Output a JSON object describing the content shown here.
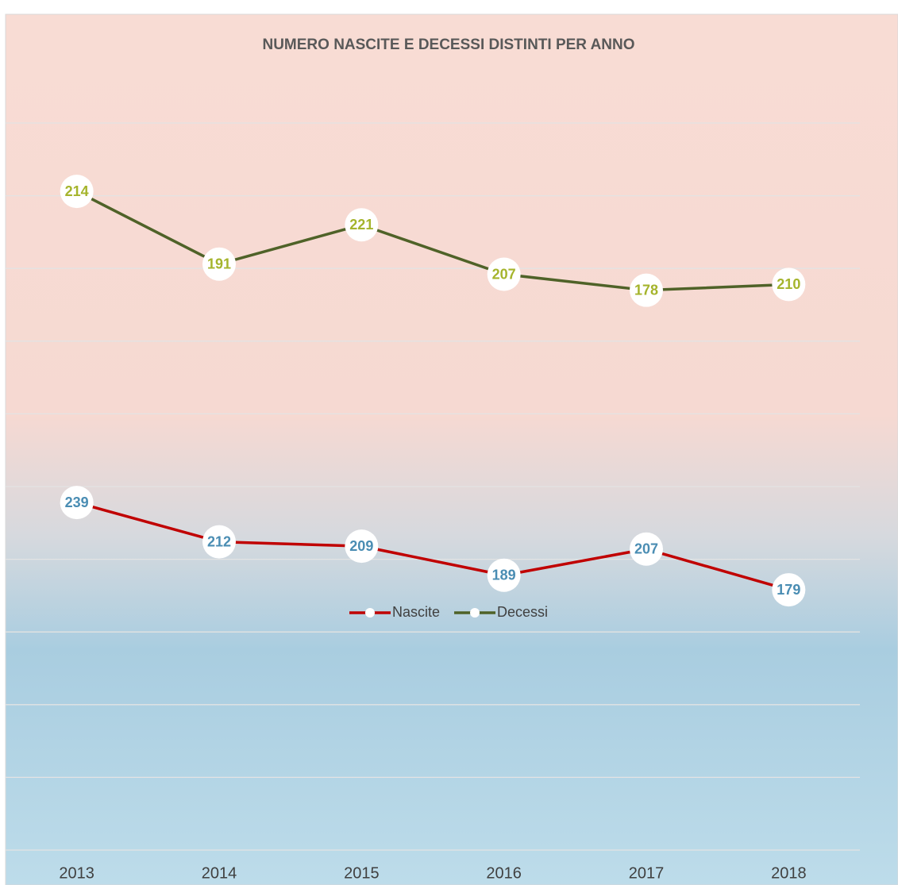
{
  "chart_data": {
    "type": "line",
    "stacked": true,
    "title": "NUMERO NASCITE E DECESSI DISTINTI PER ANNO",
    "categories": [
      "2013",
      "2014",
      "2015",
      "2016",
      "2017",
      "2018"
    ],
    "series": [
      {
        "name": "Nascite",
        "color": "#c00000",
        "label_color": "#4a8db3",
        "values": [
          239,
          212,
          209,
          189,
          207,
          179
        ]
      },
      {
        "name": "Decessi",
        "color": "#4f6228",
        "label_color": "#a5b42c",
        "values": [
          214,
          191,
          221,
          207,
          178,
          210
        ]
      }
    ],
    "ylim": [
      0,
      500
    ],
    "yticks": [
      0,
      50,
      100,
      150,
      200,
      250,
      300,
      350,
      400,
      450,
      500
    ],
    "grid": true,
    "legend": "bottom"
  }
}
